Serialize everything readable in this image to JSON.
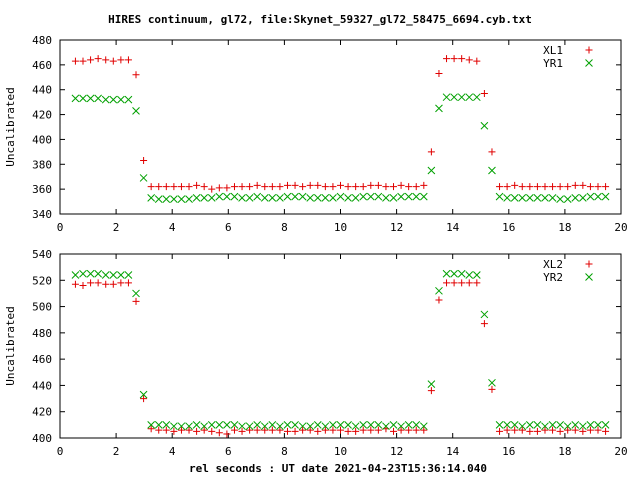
{
  "title": "HIRES continuum, gl72, file:Skynet_59327_gl72_58475_6694.cyb.txt",
  "xlabel": "rel seconds : UT date 2021-04-23T15:36:14.040",
  "colors": {
    "plus": "#e00000",
    "cross": "#00a000"
  },
  "chart_data": [
    {
      "type": "scatter",
      "ylabel": "Uncalibrated",
      "xlim": [
        0,
        20
      ],
      "ylim": [
        340,
        480
      ],
      "xticks": [
        0,
        2,
        4,
        6,
        8,
        10,
        12,
        14,
        16,
        18,
        20
      ],
      "yticks": [
        340,
        360,
        380,
        400,
        420,
        440,
        460,
        480
      ],
      "grid": false,
      "legend_position": "top-right",
      "x": [
        0.55,
        0.82,
        1.09,
        1.36,
        1.63,
        1.9,
        2.17,
        2.44,
        2.71,
        2.98,
        3.25,
        3.52,
        3.79,
        4.06,
        4.33,
        4.6,
        4.87,
        5.14,
        5.41,
        5.68,
        5.95,
        6.22,
        6.49,
        6.76,
        7.03,
        7.3,
        7.57,
        7.84,
        8.11,
        8.38,
        8.65,
        8.92,
        9.19,
        9.46,
        9.73,
        10.0,
        10.27,
        10.54,
        10.81,
        11.08,
        11.35,
        11.62,
        11.89,
        12.16,
        12.43,
        12.7,
        12.97,
        13.24,
        13.51,
        13.78,
        14.05,
        14.32,
        14.59,
        14.86,
        15.13,
        15.4,
        15.67,
        15.94,
        16.21,
        16.48,
        16.75,
        17.02,
        17.29,
        17.56,
        17.83,
        18.1,
        18.37,
        18.64,
        18.91,
        19.18,
        19.45
      ],
      "series": [
        {
          "name": "XL1",
          "marker": "plus",
          "values": [
            463,
            463,
            464,
            465,
            464,
            463,
            464,
            464,
            452,
            383,
            362,
            362,
            362,
            362,
            362,
            362,
            363,
            362,
            360,
            361,
            361,
            362,
            362,
            362,
            363,
            362,
            362,
            362,
            363,
            363,
            362,
            363,
            363,
            362,
            362,
            363,
            362,
            362,
            362,
            363,
            363,
            362,
            362,
            363,
            362,
            362,
            363,
            390,
            453,
            465,
            465,
            465,
            464,
            463,
            437,
            390,
            362,
            362,
            363,
            362,
            362,
            362,
            362,
            362,
            362,
            362,
            363,
            363,
            362,
            362,
            362
          ]
        },
        {
          "name": "YR1",
          "marker": "cross",
          "values": [
            433,
            433,
            433,
            433,
            432,
            432,
            432,
            432,
            423,
            369,
            353,
            352,
            352,
            352,
            352,
            352,
            353,
            353,
            353,
            354,
            354,
            354,
            353,
            353,
            354,
            353,
            353,
            353,
            354,
            354,
            354,
            353,
            353,
            353,
            353,
            354,
            353,
            353,
            354,
            354,
            354,
            353,
            353,
            354,
            354,
            354,
            354,
            375,
            425,
            434,
            434,
            434,
            434,
            434,
            411,
            375,
            354,
            353,
            353,
            353,
            353,
            353,
            353,
            353,
            352,
            352,
            353,
            353,
            354,
            354,
            354
          ]
        }
      ]
    },
    {
      "type": "scatter",
      "ylabel": "Uncalibrated",
      "xlim": [
        0,
        20
      ],
      "ylim": [
        400,
        540
      ],
      "xticks": [
        0,
        2,
        4,
        6,
        8,
        10,
        12,
        14,
        16,
        18,
        20
      ],
      "yticks": [
        400,
        420,
        440,
        460,
        480,
        500,
        520,
        540
      ],
      "grid": false,
      "legend_position": "top-right",
      "x": [
        0.55,
        0.82,
        1.09,
        1.36,
        1.63,
        1.9,
        2.17,
        2.44,
        2.71,
        2.98,
        3.25,
        3.52,
        3.79,
        4.06,
        4.33,
        4.6,
        4.87,
        5.14,
        5.41,
        5.68,
        5.95,
        6.22,
        6.49,
        6.76,
        7.03,
        7.3,
        7.57,
        7.84,
        8.11,
        8.38,
        8.65,
        8.92,
        9.19,
        9.46,
        9.73,
        10.0,
        10.27,
        10.54,
        10.81,
        11.08,
        11.35,
        11.62,
        11.89,
        12.16,
        12.43,
        12.7,
        12.97,
        13.24,
        13.51,
        13.78,
        14.05,
        14.32,
        14.59,
        14.86,
        15.13,
        15.4,
        15.67,
        15.94,
        16.21,
        16.48,
        16.75,
        17.02,
        17.29,
        17.56,
        17.83,
        18.1,
        18.37,
        18.64,
        18.91,
        19.18,
        19.45
      ],
      "series": [
        {
          "name": "XL2",
          "marker": "plus",
          "values": [
            517,
            516,
            518,
            518,
            517,
            517,
            518,
            518,
            504,
            430,
            407,
            406,
            406,
            405,
            406,
            406,
            405,
            406,
            405,
            404,
            403,
            406,
            405,
            406,
            406,
            406,
            406,
            406,
            405,
            405,
            406,
            406,
            405,
            406,
            406,
            406,
            405,
            405,
            406,
            406,
            406,
            407,
            405,
            406,
            406,
            406,
            406,
            436,
            505,
            518,
            518,
            518,
            518,
            518,
            487,
            437,
            405,
            406,
            406,
            406,
            405,
            405,
            406,
            406,
            405,
            406,
            406,
            405,
            406,
            406,
            405
          ]
        },
        {
          "name": "YR2",
          "marker": "cross",
          "values": [
            524,
            525,
            525,
            525,
            524,
            524,
            524,
            524,
            510,
            433,
            410,
            410,
            410,
            409,
            409,
            409,
            410,
            409,
            410,
            410,
            410,
            410,
            409,
            409,
            410,
            409,
            410,
            409,
            410,
            410,
            409,
            409,
            410,
            409,
            410,
            410,
            410,
            409,
            410,
            410,
            410,
            409,
            410,
            409,
            410,
            410,
            409,
            441,
            512,
            525,
            525,
            525,
            524,
            524,
            494,
            442,
            410,
            410,
            410,
            409,
            410,
            410,
            409,
            410,
            410,
            409,
            410,
            409,
            410,
            410,
            410
          ]
        }
      ]
    }
  ]
}
